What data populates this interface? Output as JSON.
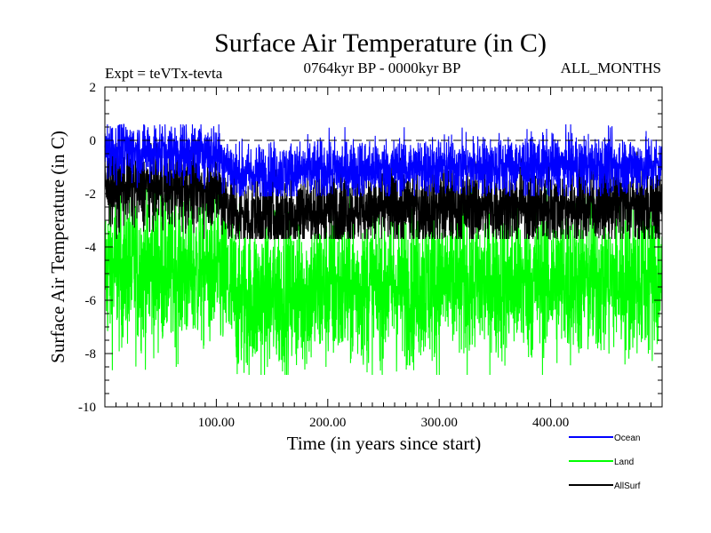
{
  "chart_data": {
    "type": "line",
    "title": "Surface Air Temperature (in C)",
    "subtitle_left": "Expt = teVTx-tevta",
    "subtitle_center": "0764kyr BP - 0000kyr BP",
    "subtitle_right": "ALL_MONTHS",
    "xlabel": "Time (in years since start)",
    "ylabel": "Surface Air Temperature (in C)",
    "xlim": [
      0,
      500
    ],
    "ylim": [
      -10,
      2
    ],
    "x_ticks": [
      100,
      200,
      300,
      400
    ],
    "x_tick_labels": [
      "100.00",
      "200.00",
      "300.00",
      "400.00"
    ],
    "y_ticks": [
      2,
      0,
      -2,
      -4,
      -6,
      -8,
      -10
    ],
    "y_tick_labels": [
      "2",
      "0",
      "-2",
      "-4",
      "-6",
      "-8",
      "-10"
    ],
    "reference_line": 0,
    "series": [
      {
        "name": "Land",
        "color": "#00ff00",
        "baseline_by_year": [
          [
            0,
            -4.8
          ],
          [
            100,
            -4.9
          ],
          [
            120,
            -6.0
          ],
          [
            200,
            -5.6
          ],
          [
            300,
            -5.4
          ],
          [
            400,
            -5.3
          ],
          [
            500,
            -5.2
          ]
        ],
        "range": [
          -8.8,
          -1.8
        ]
      },
      {
        "name": "AllSurf",
        "color": "#000000",
        "baseline_by_year": [
          [
            0,
            -1.7
          ],
          [
            100,
            -1.8
          ],
          [
            120,
            -2.9
          ],
          [
            200,
            -2.6
          ],
          [
            300,
            -2.5
          ],
          [
            400,
            -2.5
          ],
          [
            500,
            -2.4
          ]
        ],
        "range": [
          -3.7,
          -0.1
        ]
      },
      {
        "name": "Ocean",
        "color": "#0000ff",
        "baseline_by_year": [
          [
            0,
            -0.35
          ],
          [
            100,
            -0.45
          ],
          [
            120,
            -1.3
          ],
          [
            200,
            -1.1
          ],
          [
            300,
            -1.0
          ],
          [
            400,
            -0.95
          ],
          [
            500,
            -0.95
          ]
        ],
        "range": [
          -2.1,
          0.6
        ]
      }
    ],
    "legend": [
      {
        "name": "Ocean",
        "color": "#0000ff"
      },
      {
        "name": "Land",
        "color": "#00ff00"
      },
      {
        "name": "AllSurf",
        "color": "#000000"
      }
    ],
    "legend_position": "bottom-right"
  }
}
